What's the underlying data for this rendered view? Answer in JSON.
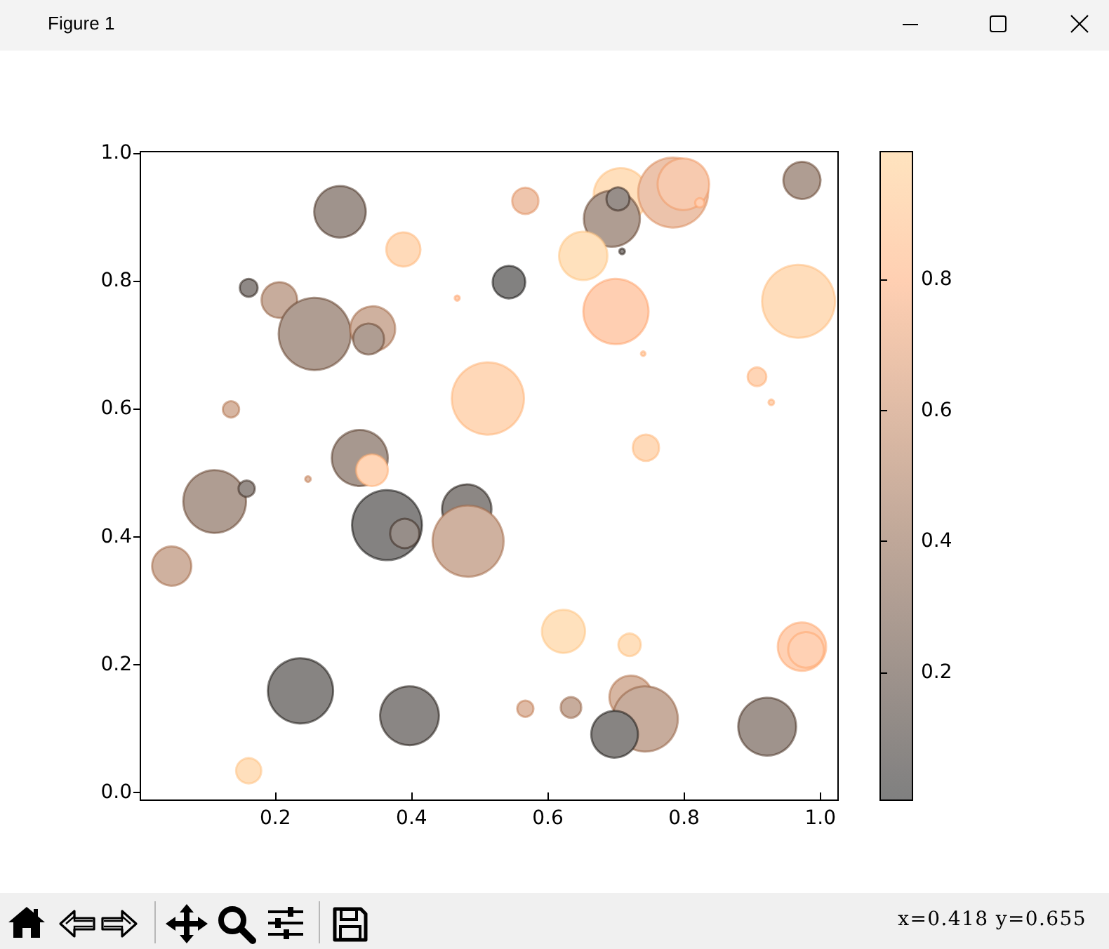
{
  "chart_data": {
    "type": "bubble",
    "x": [
      0.295,
      0.388,
      0.161,
      0.206,
      0.467,
      0.258,
      0.343,
      0.337,
      0.135,
      0.512,
      0.324,
      0.342,
      0.248,
      0.111,
      0.158,
      0.048,
      0.364,
      0.39,
      0.481,
      0.483,
      0.237,
      0.397,
      0.161,
      0.567,
      0.707,
      0.694,
      0.703,
      0.784,
      0.799,
      0.823,
      0.973,
      0.709,
      0.652,
      0.543,
      0.7,
      0.968,
      0.74,
      0.907,
      0.928,
      0.744,
      0.623,
      0.72,
      0.973,
      0.979,
      0.567,
      0.634,
      0.722,
      0.743,
      0.698,
      0.922
    ],
    "values": [
      0.908,
      0.849,
      0.789,
      0.77,
      0.773,
      0.717,
      0.725,
      0.709,
      0.599,
      0.616,
      0.523,
      0.504,
      0.49,
      0.455,
      0.475,
      0.354,
      0.418,
      0.405,
      0.443,
      0.393,
      0.159,
      0.12,
      0.034,
      0.925,
      0.934,
      0.897,
      0.928,
      0.938,
      0.951,
      0.922,
      0.957,
      0.846,
      0.839,
      0.798,
      0.752,
      0.768,
      0.686,
      0.65,
      0.61,
      0.539,
      0.252,
      0.231,
      0.228,
      0.223,
      0.131,
      0.133,
      0.149,
      0.115,
      0.091,
      0.103
    ],
    "sizes": [
      0.5,
      0.22,
      0.06,
      0.24,
      0.005,
      0.98,
      0.38,
      0.18,
      0.05,
      0.98,
      0.59,
      0.19,
      0.006,
      0.74,
      0.05,
      0.29,
      0.92,
      0.16,
      0.46,
      0.95,
      0.8,
      0.65,
      0.12,
      0.13,
      0.55,
      0.59,
      0.1,
      0.92,
      0.5,
      0.016,
      0.26,
      0.006,
      0.44,
      0.2,
      0.8,
      1.0,
      0.004,
      0.066,
      0.006,
      0.13,
      0.35,
      0.095,
      0.44,
      0.24,
      0.05,
      0.08,
      0.35,
      0.8,
      0.41,
      0.63
    ],
    "cvalues": [
      0.2,
      0.9,
      0.1,
      0.45,
      0.8,
      0.3,
      0.5,
      0.3,
      0.55,
      0.88,
      0.25,
      0.85,
      0.6,
      0.3,
      0.15,
      0.5,
      0.03,
      0.15,
      0.08,
      0.5,
      0.05,
      0.07,
      0.95,
      0.7,
      0.95,
      0.3,
      0.15,
      0.68,
      0.75,
      0.8,
      0.3,
      0.1,
      0.97,
      0.02,
      0.8,
      0.93,
      0.85,
      0.85,
      0.85,
      0.9,
      0.97,
      0.95,
      0.82,
      0.82,
      0.6,
      0.45,
      0.55,
      0.45,
      0.05,
      0.2
    ],
    "clim": [
      0.005,
      0.995
    ],
    "cticks": [
      0.2,
      0.4,
      0.6,
      0.8
    ],
    "xlim": [
      0.002,
      1.026
    ],
    "xticks": [
      0.2,
      0.4,
      0.6,
      0.8,
      {
        "value": 1,
        "label": "1.0"
      }
    ],
    "ylim": [
      -0.012,
      1.002
    ],
    "yticks": [
      {
        "value": 0,
        "label": "0.0"
      },
      0.2,
      0.4,
      0.6,
      0.8,
      {
        "value": 1,
        "label": "1.0"
      }
    ],
    "marker": "circle",
    "annotations": [
      "Figure 1",
      "x=0.418 y=0.655"
    ]
  }
}
